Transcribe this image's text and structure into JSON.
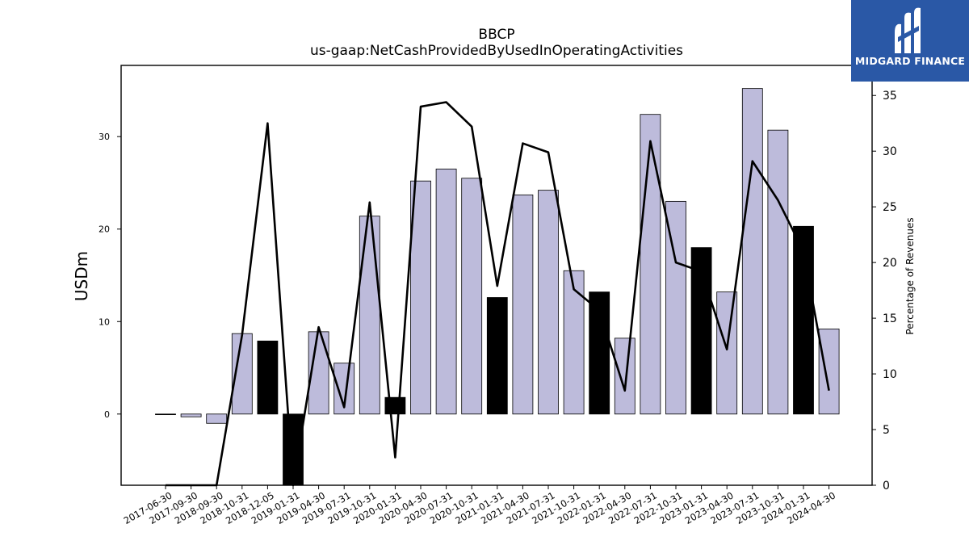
{
  "logo": {
    "text": "MIDGARD FINANCE",
    "icon": "midgard-logo-icon"
  },
  "chart_data": {
    "type": "bar",
    "title": "BBCP",
    "subtitle": "us-gaap:NetCashProvidedByUsedInOperatingActivities",
    "ylabel": "USDm",
    "y2label": "Percentage of Revenues",
    "ylim": [
      -7.7,
      37.7
    ],
    "y2lim": [
      0,
      37.7
    ],
    "yticks": [
      0,
      10,
      20,
      30
    ],
    "y2ticks": [
      0,
      5,
      10,
      15,
      20,
      25,
      30,
      35
    ],
    "categories": [
      "2017-06-30",
      "2017-09-30",
      "2018-09-30",
      "2018-10-31",
      "2018-12-05",
      "2019-01-31",
      "2019-04-30",
      "2019-07-31",
      "2019-10-31",
      "2020-01-31",
      "2020-04-30",
      "2020-07-31",
      "2020-10-31",
      "2021-01-31",
      "2021-04-30",
      "2021-07-31",
      "2021-10-31",
      "2022-01-31",
      "2022-04-30",
      "2022-07-31",
      "2022-10-31",
      "2023-01-31",
      "2023-04-30",
      "2023-07-31",
      "2023-10-31",
      "2024-01-31",
      "2024-04-30"
    ],
    "series": [
      {
        "values": [
          0.0,
          -0.3,
          -1.0,
          8.7,
          7.9,
          -7.7,
          8.9,
          5.5,
          21.4,
          1.8,
          25.2,
          26.5,
          25.5,
          12.6,
          23.7,
          24.2,
          15.5,
          13.2,
          8.2,
          32.4,
          23.0,
          18.0,
          13.2,
          35.2,
          30.7,
          20.3,
          9.2
        ]
      },
      {
        "values": [
          0,
          0,
          0,
          13.5,
          32.5,
          0,
          14.2,
          7.0,
          25.4,
          2.5,
          34.0,
          34.4,
          32.2,
          17.9,
          30.7,
          29.9,
          17.6,
          15.7,
          8.5,
          30.9,
          20.0,
          19.2,
          12.2,
          29.1,
          25.6,
          21.0,
          8.5
        ]
      }
    ],
    "bar_colors": [
      "#bdbbdb",
      "#bdbbdb",
      "#bdbbdb",
      "#bdbbdb",
      "#000000",
      "#000000",
      "#bdbbdb",
      "#bdbbdb",
      "#bdbbdb",
      "#000000",
      "#bdbbdb",
      "#bdbbdb",
      "#bdbbdb",
      "#000000",
      "#bdbbdb",
      "#bdbbdb",
      "#bdbbdb",
      "#000000",
      "#bdbbdb",
      "#bdbbdb",
      "#bdbbdb",
      "#000000",
      "#bdbbdb",
      "#bdbbdb",
      "#bdbbdb",
      "#000000",
      "#bdbbdb"
    ],
    "line_color": "#000000",
    "grid": false
  }
}
